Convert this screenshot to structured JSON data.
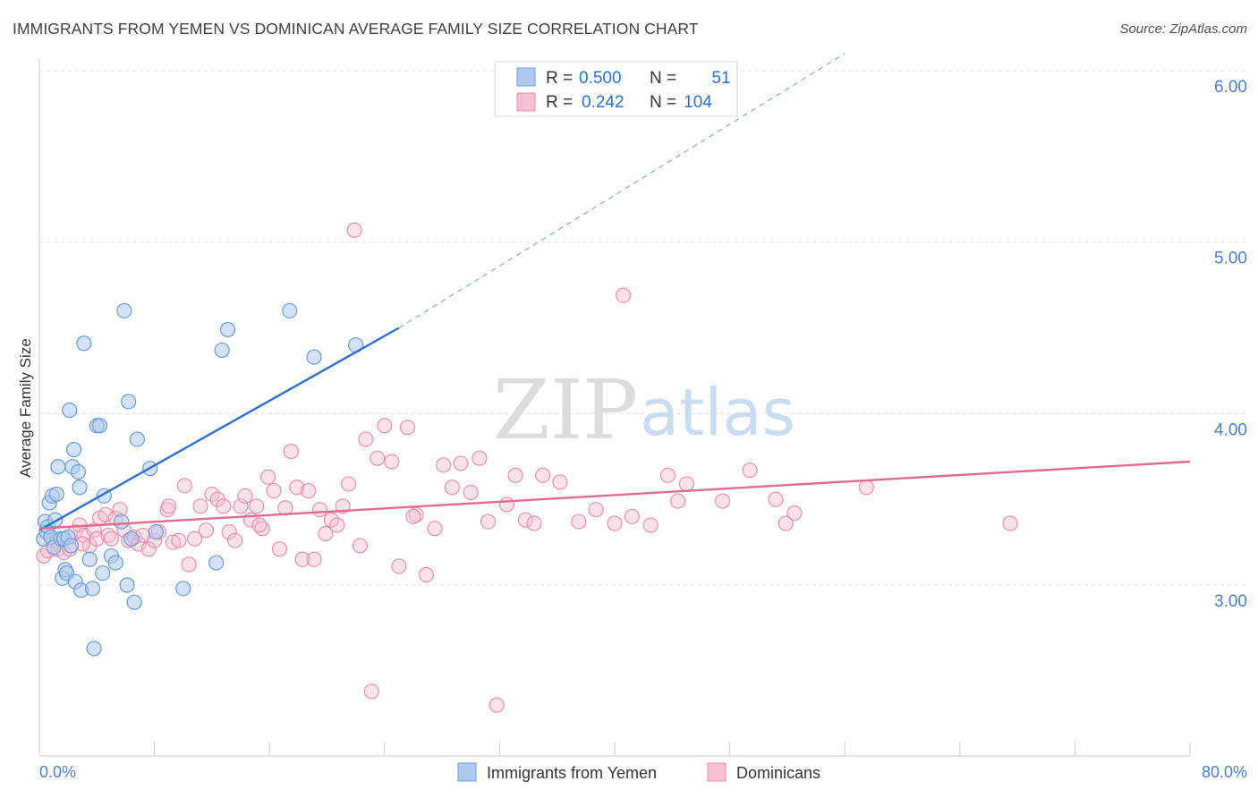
{
  "title": "IMMIGRANTS FROM YEMEN VS DOMINICAN AVERAGE FAMILY SIZE CORRELATION CHART",
  "source": "Source: ZipAtlas.com",
  "watermark": {
    "zip": "ZIP",
    "atlas": "atlas"
  },
  "legend_top": [
    {
      "r_label": "R =",
      "r_value": "0.500",
      "n_label": "N =",
      "n_value": "51"
    },
    {
      "r_label": "R =",
      "r_value": "0.242",
      "n_label": "N =",
      "n_value": "104"
    }
  ],
  "legend_bottom": [
    "Immigrants from Yemen",
    "Dominicans"
  ],
  "colors": {
    "blue_fill": "#aecbef",
    "blue_stroke": "#6a9bd8",
    "blue_line": "#2f6fcd",
    "pink_fill": "#f7bfd0",
    "pink_stroke": "#e88fab",
    "pink_line": "#e16a94",
    "tick_text": "#4a7ed1",
    "grid": "#e0e0e0"
  },
  "chart_data": {
    "type": "scatter",
    "title": "IMMIGRANTS FROM YEMEN VS DOMINICAN AVERAGE FAMILY SIZE CORRELATION CHART",
    "xlabel": "",
    "ylabel": "Average Family Size",
    "xlim": [
      0,
      80
    ],
    "ylim": [
      2.0,
      6.1
    ],
    "x_tick_labels": [
      "0.0%",
      "80.0%"
    ],
    "y_ticks": [
      3.0,
      4.0,
      5.0,
      6.0
    ],
    "y_tick_labels": [
      "3.00",
      "4.00",
      "5.00",
      "6.00"
    ],
    "grid": true,
    "legend_position": "top-center",
    "series": [
      {
        "name": "Immigrants from Yemen",
        "R": 0.5,
        "N": 51,
        "trend": {
          "x0": 0.0,
          "y0": 3.32,
          "x1": 25.0,
          "y1": 4.5,
          "dashed_to_x": 56.0,
          "dashed_to_y": 6.1
        },
        "points": [
          [
            0.3,
            3.27
          ],
          [
            0.4,
            3.37
          ],
          [
            0.5,
            3.31
          ],
          [
            0.6,
            3.34
          ],
          [
            0.7,
            3.48
          ],
          [
            0.8,
            3.28
          ],
          [
            0.9,
            3.52
          ],
          [
            1.0,
            3.22
          ],
          [
            1.1,
            3.38
          ],
          [
            1.2,
            3.53
          ],
          [
            1.3,
            3.69
          ],
          [
            1.5,
            3.27
          ],
          [
            1.6,
            3.04
          ],
          [
            1.7,
            3.27
          ],
          [
            1.8,
            3.09
          ],
          [
            1.9,
            3.07
          ],
          [
            2.0,
            3.28
          ],
          [
            2.1,
            4.02
          ],
          [
            2.2,
            3.23
          ],
          [
            2.3,
            3.69
          ],
          [
            2.4,
            3.79
          ],
          [
            2.5,
            3.02
          ],
          [
            2.7,
            3.66
          ],
          [
            2.8,
            3.57
          ],
          [
            2.9,
            2.97
          ],
          [
            3.1,
            4.41
          ],
          [
            3.5,
            3.15
          ],
          [
            3.7,
            2.98
          ],
          [
            3.8,
            2.63
          ],
          [
            4.0,
            3.93
          ],
          [
            4.2,
            3.93
          ],
          [
            4.4,
            3.07
          ],
          [
            4.5,
            3.52
          ],
          [
            5.0,
            3.17
          ],
          [
            5.3,
            3.13
          ],
          [
            5.7,
            3.37
          ],
          [
            5.9,
            4.6
          ],
          [
            6.1,
            3.0
          ],
          [
            6.2,
            4.07
          ],
          [
            6.4,
            3.27
          ],
          [
            6.6,
            2.9
          ],
          [
            6.8,
            3.85
          ],
          [
            7.7,
            3.68
          ],
          [
            8.1,
            3.31
          ],
          [
            10.0,
            2.98
          ],
          [
            12.3,
            3.13
          ],
          [
            12.7,
            4.37
          ],
          [
            13.1,
            4.49
          ],
          [
            17.4,
            4.6
          ],
          [
            19.1,
            4.33
          ],
          [
            22.0,
            4.4
          ]
        ]
      },
      {
        "name": "Dominicans",
        "R": 0.242,
        "N": 104,
        "trend": {
          "x0": 0.0,
          "y0": 3.33,
          "x1": 80.0,
          "y1": 3.72
        },
        "points": [
          [
            0.3,
            3.17
          ],
          [
            0.6,
            3.2
          ],
          [
            1.0,
            3.26
          ],
          [
            1.3,
            3.21
          ],
          [
            1.7,
            3.19
          ],
          [
            2.1,
            3.21
          ],
          [
            2.5,
            3.31
          ],
          [
            2.8,
            3.35
          ],
          [
            3.1,
            3.29
          ],
          [
            3.5,
            3.23
          ],
          [
            3.8,
            3.32
          ],
          [
            4.0,
            3.27
          ],
          [
            4.2,
            3.39
          ],
          [
            4.6,
            3.41
          ],
          [
            4.8,
            3.29
          ],
          [
            5.0,
            3.27
          ],
          [
            5.3,
            3.39
          ],
          [
            5.6,
            3.44
          ],
          [
            5.9,
            3.32
          ],
          [
            6.2,
            3.26
          ],
          [
            6.6,
            3.28
          ],
          [
            6.9,
            3.24
          ],
          [
            7.2,
            3.29
          ],
          [
            7.6,
            3.21
          ],
          [
            8.0,
            3.26
          ],
          [
            8.3,
            3.31
          ],
          [
            8.9,
            3.44
          ],
          [
            9.3,
            3.25
          ],
          [
            9.7,
            3.26
          ],
          [
            10.1,
            3.58
          ],
          [
            10.4,
            3.12
          ],
          [
            10.8,
            3.27
          ],
          [
            11.2,
            3.46
          ],
          [
            11.6,
            3.32
          ],
          [
            12.0,
            3.53
          ],
          [
            12.4,
            3.5
          ],
          [
            12.8,
            3.46
          ],
          [
            13.2,
            3.31
          ],
          [
            13.6,
            3.26
          ],
          [
            14.0,
            3.46
          ],
          [
            14.3,
            3.52
          ],
          [
            14.7,
            3.38
          ],
          [
            15.1,
            3.46
          ],
          [
            15.5,
            3.33
          ],
          [
            15.9,
            3.63
          ],
          [
            16.3,
            3.55
          ],
          [
            16.7,
            3.21
          ],
          [
            17.1,
            3.45
          ],
          [
            17.5,
            3.78
          ],
          [
            17.9,
            3.57
          ],
          [
            18.3,
            3.15
          ],
          [
            18.7,
            3.55
          ],
          [
            19.1,
            3.15
          ],
          [
            19.5,
            3.44
          ],
          [
            19.9,
            3.3
          ],
          [
            20.3,
            3.38
          ],
          [
            20.7,
            3.35
          ],
          [
            21.1,
            3.46
          ],
          [
            21.5,
            3.59
          ],
          [
            21.9,
            5.07
          ],
          [
            22.3,
            3.23
          ],
          [
            22.7,
            3.85
          ],
          [
            23.1,
            2.38
          ],
          [
            23.5,
            3.74
          ],
          [
            24.0,
            3.93
          ],
          [
            24.5,
            3.72
          ],
          [
            25.0,
            3.11
          ],
          [
            25.6,
            3.92
          ],
          [
            26.2,
            3.41
          ],
          [
            26.9,
            3.06
          ],
          [
            27.5,
            3.33
          ],
          [
            28.1,
            3.7
          ],
          [
            28.7,
            3.57
          ],
          [
            29.3,
            3.71
          ],
          [
            30.0,
            3.54
          ],
          [
            30.6,
            3.74
          ],
          [
            31.2,
            3.37
          ],
          [
            31.8,
            2.3
          ],
          [
            32.5,
            3.47
          ],
          [
            33.1,
            3.64
          ],
          [
            33.8,
            3.38
          ],
          [
            34.4,
            3.36
          ],
          [
            35.0,
            3.64
          ],
          [
            36.2,
            3.6
          ],
          [
            37.5,
            3.37
          ],
          [
            38.7,
            3.44
          ],
          [
            40.0,
            3.36
          ],
          [
            40.6,
            4.69
          ],
          [
            41.2,
            3.4
          ],
          [
            42.5,
            3.35
          ],
          [
            43.7,
            3.64
          ],
          [
            44.4,
            3.49
          ],
          [
            45.0,
            3.59
          ],
          [
            47.5,
            3.49
          ],
          [
            49.4,
            3.67
          ],
          [
            51.2,
            3.5
          ],
          [
            51.9,
            3.36
          ],
          [
            52.5,
            3.42
          ],
          [
            57.5,
            3.57
          ],
          [
            67.5,
            3.36
          ],
          [
            15.3,
            3.35
          ],
          [
            9.0,
            3.46
          ],
          [
            26.0,
            3.4
          ],
          [
            3.0,
            3.24
          ]
        ]
      }
    ]
  }
}
